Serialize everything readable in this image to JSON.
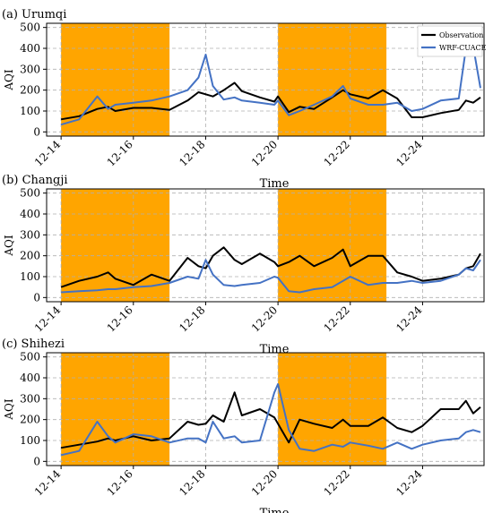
{
  "figure": {
    "colors": {
      "shade": "#FFA500",
      "observation": "#000000",
      "model": "#4472C4",
      "grid": "#b0b0b0"
    }
  },
  "chart_data": [
    {
      "type": "line",
      "title": "(a) Urumqi",
      "xlabel": "Time",
      "ylabel": "AQI",
      "xlim": [
        "12-14",
        "12-25.7"
      ],
      "ylim": [
        -20,
        520
      ],
      "yticks": [
        0,
        100,
        200,
        300,
        400,
        500
      ],
      "xticks": [
        "12-14",
        "12-16",
        "12-18",
        "12-20",
        "12-22",
        "12-24"
      ],
      "grid": true,
      "legend": "top-right",
      "shaded_ranges": [
        [
          "12-14",
          "12-17"
        ],
        [
          "12-20",
          "12-23"
        ]
      ],
      "x_days": [
        14.0,
        14.5,
        15.0,
        15.3,
        15.5,
        16.0,
        16.5,
        17.0,
        17.5,
        17.8,
        18.0,
        18.2,
        18.5,
        18.8,
        19.0,
        19.5,
        19.9,
        20.0,
        20.3,
        20.6,
        21.0,
        21.5,
        21.8,
        22.0,
        22.5,
        22.9,
        23.3,
        23.7,
        24.0,
        24.5,
        25.0,
        25.2,
        25.4,
        25.6
      ],
      "series": [
        {
          "name": "Observation",
          "values": [
            60,
            75,
            110,
            120,
            100,
            115,
            115,
            105,
            150,
            190,
            180,
            170,
            200,
            235,
            195,
            165,
            145,
            170,
            95,
            120,
            110,
            165,
            200,
            180,
            160,
            200,
            160,
            70,
            70,
            90,
            105,
            150,
            140,
            165
          ]
        },
        {
          "name": "WRF-CUACE",
          "values": [
            35,
            60,
            170,
            110,
            130,
            140,
            150,
            170,
            200,
            260,
            370,
            220,
            155,
            165,
            150,
            140,
            130,
            150,
            80,
            100,
            130,
            170,
            220,
            160,
            130,
            130,
            140,
            100,
            110,
            150,
            160,
            400,
            410,
            210
          ]
        }
      ]
    },
    {
      "type": "line",
      "title": "(b) Changji",
      "xlabel": "Time",
      "ylabel": "AQI",
      "xlim": [
        "12-14",
        "12-25.7"
      ],
      "ylim": [
        -20,
        520
      ],
      "yticks": [
        0,
        100,
        200,
        300,
        400,
        500
      ],
      "xticks": [
        "12-14",
        "12-16",
        "12-18",
        "12-20",
        "12-22",
        "12-24"
      ],
      "grid": true,
      "shaded_ranges": [
        [
          "12-14",
          "12-17"
        ],
        [
          "12-20",
          "12-23"
        ]
      ],
      "x_days": [
        14.0,
        14.5,
        15.0,
        15.3,
        15.5,
        16.0,
        16.5,
        17.0,
        17.5,
        17.8,
        18.0,
        18.2,
        18.5,
        18.8,
        19.0,
        19.5,
        19.9,
        20.0,
        20.3,
        20.6,
        21.0,
        21.5,
        21.8,
        22.0,
        22.5,
        22.9,
        23.3,
        23.7,
        24.0,
        24.5,
        25.0,
        25.2,
        25.4,
        25.6
      ],
      "series": [
        {
          "name": "Observation",
          "values": [
            50,
            80,
            100,
            120,
            90,
            60,
            110,
            80,
            190,
            150,
            140,
            200,
            240,
            180,
            160,
            210,
            170,
            150,
            170,
            200,
            150,
            190,
            230,
            150,
            200,
            200,
            120,
            100,
            80,
            90,
            110,
            140,
            150,
            210
          ]
        },
        {
          "name": "WRF-CUACE",
          "values": [
            25,
            30,
            35,
            40,
            40,
            50,
            55,
            70,
            100,
            90,
            180,
            110,
            60,
            55,
            60,
            70,
            100,
            95,
            30,
            25,
            40,
            50,
            80,
            100,
            60,
            70,
            70,
            80,
            70,
            80,
            110,
            140,
            130,
            180
          ]
        }
      ]
    },
    {
      "type": "line",
      "title": "(c) Shihezi",
      "xlabel": "Time",
      "ylabel": "AQI",
      "xlim": [
        "12-14",
        "12-25.7"
      ],
      "ylim": [
        -20,
        520
      ],
      "yticks": [
        0,
        100,
        200,
        300,
        400,
        500
      ],
      "xticks": [
        "12-14",
        "12-16",
        "12-18",
        "12-20",
        "12-22",
        "12-24"
      ],
      "grid": true,
      "shaded_ranges": [
        [
          "12-14",
          "12-17"
        ],
        [
          "12-20",
          "12-23"
        ]
      ],
      "x_days": [
        14.0,
        14.5,
        15.0,
        15.3,
        15.5,
        16.0,
        16.5,
        17.0,
        17.5,
        17.8,
        18.0,
        18.2,
        18.5,
        18.8,
        19.0,
        19.5,
        19.9,
        20.0,
        20.3,
        20.6,
        21.0,
        21.5,
        21.8,
        22.0,
        22.5,
        22.9,
        23.3,
        23.7,
        24.0,
        24.5,
        25.0,
        25.2,
        25.4,
        25.6
      ],
      "series": [
        {
          "name": "Observation",
          "values": [
            65,
            80,
            95,
            110,
            100,
            120,
            100,
            110,
            190,
            175,
            180,
            220,
            190,
            330,
            220,
            250,
            210,
            180,
            90,
            200,
            180,
            160,
            200,
            170,
            170,
            210,
            160,
            140,
            170,
            250,
            250,
            290,
            230,
            260
          ]
        },
        {
          "name": "WRF-CUACE",
          "values": [
            30,
            50,
            190,
            120,
            90,
            130,
            120,
            90,
            110,
            110,
            90,
            190,
            110,
            120,
            90,
            100,
            330,
            370,
            150,
            60,
            50,
            80,
            70,
            90,
            75,
            60,
            90,
            60,
            80,
            100,
            110,
            140,
            150,
            140
          ]
        }
      ]
    }
  ]
}
